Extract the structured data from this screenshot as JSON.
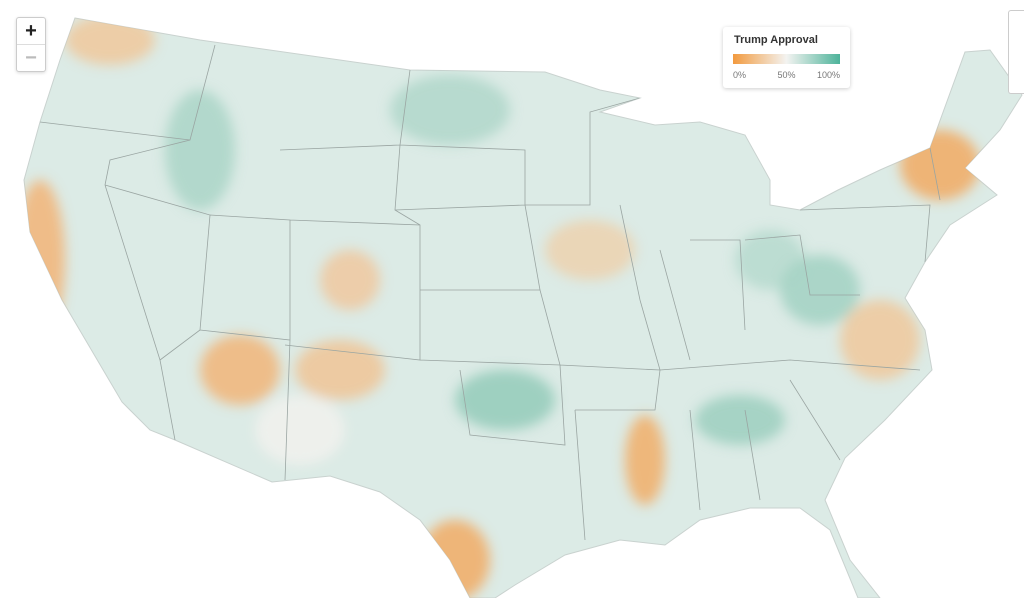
{
  "zoom": {
    "in": "+",
    "out": "−"
  },
  "legend": {
    "title": "Trump Approval",
    "range": [
      0,
      100
    ],
    "colors": [
      "#f29a3f",
      "#f3f3f1",
      "#4db39a"
    ],
    "ticks": [
      {
        "value": 0,
        "label": "0%"
      },
      {
        "value": 50,
        "label": "50%"
      },
      {
        "value": 100,
        "label": "100%"
      }
    ]
  }
}
